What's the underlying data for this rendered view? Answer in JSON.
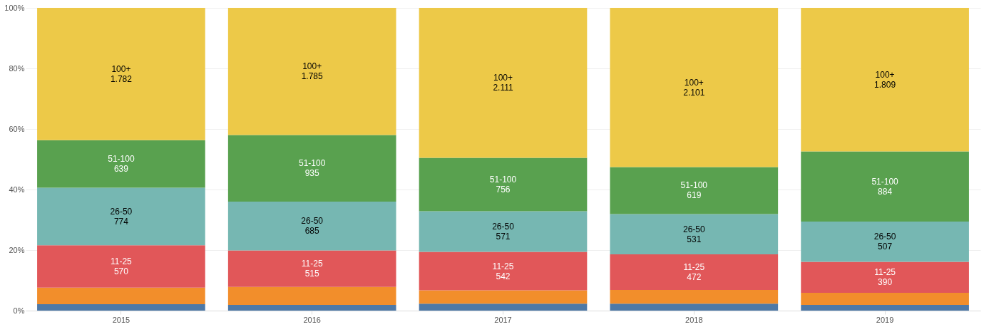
{
  "chart_data": {
    "type": "bar",
    "stacked": true,
    "categories": [
      "2015",
      "2016",
      "2017",
      "2018",
      "2019"
    ],
    "series": [
      {
        "color": "#4e79a7",
        "values": [
          2.1,
          1.9,
          2.3,
          2.3,
          1.9
        ]
      },
      {
        "color": "#f28e2b",
        "values": [
          5.5,
          5.9,
          4.4,
          4.5,
          4.0
        ]
      },
      {
        "name": "11-25",
        "color": "#e15759",
        "values": [
          14.0,
          12.1,
          12.7,
          11.8,
          10.2
        ]
      },
      {
        "name": "26-50",
        "color": "#76b7b2",
        "values": [
          19.0,
          16.1,
          13.4,
          13.3,
          13.3
        ]
      },
      {
        "name": "51-100",
        "color": "#59a14f",
        "values": [
          15.7,
          22.0,
          17.7,
          15.5,
          23.2
        ]
      },
      {
        "name": "100+",
        "color": "#edc948",
        "values": [
          43.7,
          42.0,
          49.5,
          52.6,
          47.4
        ]
      }
    ],
    "annotations": [
      "570",
      "774",
      "639",
      "1.782",
      "515",
      "685",
      "935",
      "1.785",
      "542",
      "571",
      "756",
      "2.111",
      "472",
      "531",
      "619",
      "2.101",
      "390",
      "507",
      "884",
      "1.809"
    ],
    "ylim": [
      0,
      100
    ],
    "yticks": [
      {
        "value": 0,
        "label": "0%"
      },
      {
        "value": 20,
        "label": "20%"
      },
      {
        "value": 40,
        "label": "40%"
      },
      {
        "value": 60,
        "label": "60%"
      },
      {
        "value": 80,
        "label": "80%"
      },
      {
        "value": 100,
        "label": "100%"
      }
    ],
    "grid": "y",
    "legend": false
  }
}
